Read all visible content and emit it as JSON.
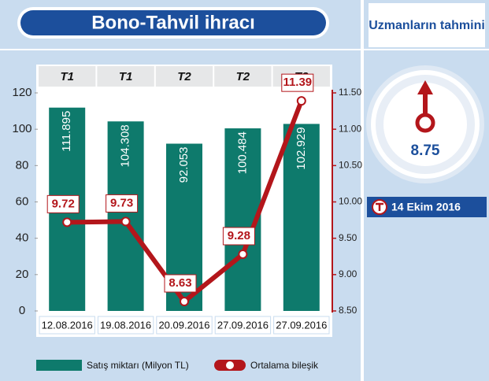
{
  "chart_data": {
    "type": "bar",
    "title": "Bono-Tahvil ihracı",
    "categories": [
      "12.08.2016",
      "19.08.2016",
      "20.09.2016",
      "27.09.2016",
      "27.09.2016"
    ],
    "periods": [
      "T1",
      "T1",
      "T2",
      "T2",
      "T2"
    ],
    "series": [
      {
        "name": "Satış miktarı (Milyon TL)",
        "type": "bar",
        "color": "#0e7a6c",
        "values": [
          111.895,
          104.308,
          92.053,
          100.484,
          102.929
        ]
      },
      {
        "name": "Ortalama bileşik",
        "type": "line",
        "axis": "y2",
        "color": "#b3161b",
        "values": [
          9.72,
          9.73,
          8.63,
          9.28,
          11.39
        ]
      }
    ],
    "ylim": [
      0,
      120
    ],
    "yticks": [
      0,
      20,
      40,
      60,
      80,
      100,
      120
    ],
    "y2lim": [
      8.5,
      11.5
    ],
    "y2ticks": [
      {
        "value": 8.5,
        "label": "8.50"
      },
      {
        "value": 9,
        "label": "9.00"
      },
      {
        "value": 9.5,
        "label": "9.50"
      },
      {
        "value": 10,
        "label": "10.00"
      },
      {
        "value": 10.5,
        "label": "10.50"
      },
      {
        "value": 11,
        "label": "11.00"
      },
      {
        "value": 11.5,
        "label": "11.50"
      }
    ]
  },
  "forecast": {
    "title": "Uzmanların tahmini",
    "value": 8.75,
    "date": "14 Ekim 2016"
  }
}
